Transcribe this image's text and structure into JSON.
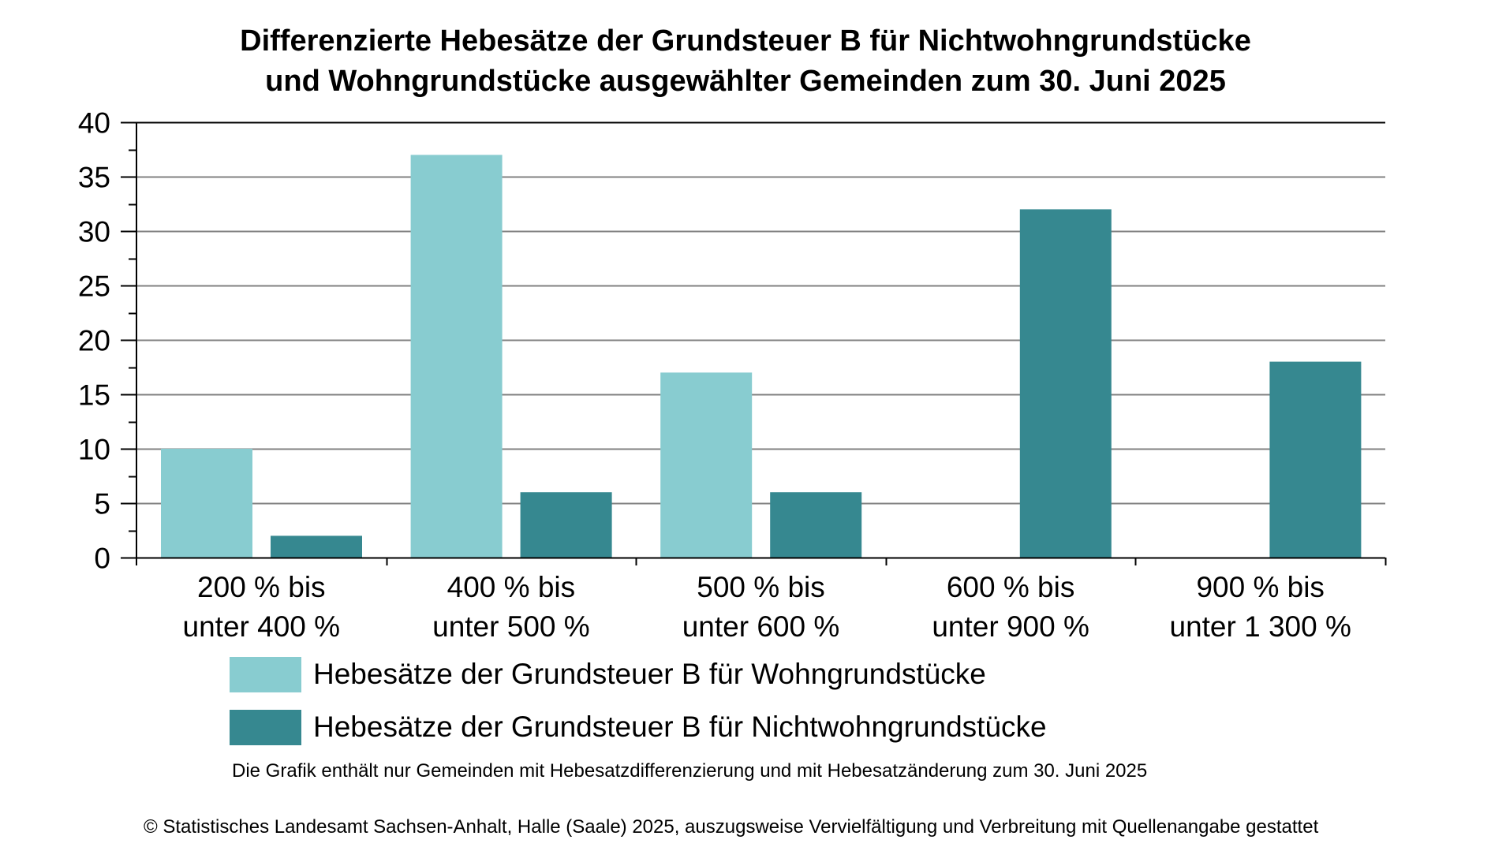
{
  "title_lines": [
    "Differenzierte Hebesätze der Grundsteuer B für Nichtwohngrundstücke",
    "und Wohngrundstücke ausgewählter Gemeinden zum 30. Juni 2025"
  ],
  "colors": {
    "wohn": "#88CCD0",
    "nichtwohn": "#368890",
    "grid": "#808080",
    "axis": "#000000"
  },
  "footnote": "Die Grafik enthält nur Gemeinden mit Hebesatzdifferenzierung und mit Hebesatzänderung zum 30. Juni 2025",
  "copyright": "© Statistisches Landesamt Sachsen-Anhalt, Halle (Saale) 2025, auszugsweise Vervielfältigung und Verbreitung mit Quellenangabe gestattet",
  "chart_data": {
    "type": "bar",
    "title": "Differenzierte Hebesätze der Grundsteuer B für Nichtwohngrundstücke und Wohngrundstücke ausgewählter Gemeinden zum 30. Juni 2025",
    "xlabel": "",
    "ylabel": "",
    "categories": [
      [
        "200 % bis",
        "unter 400 %"
      ],
      [
        "400 % bis",
        "unter 500 %"
      ],
      [
        "500 % bis",
        "unter 600 %"
      ],
      [
        "600 % bis",
        "unter 900 %"
      ],
      [
        "900 % bis",
        "unter 1 300 %"
      ]
    ],
    "series": [
      {
        "name": "Hebesätze der Grundsteuer B für Wohngrundstücke",
        "color": "#88CCD0",
        "values": [
          10,
          37,
          17,
          0,
          0
        ]
      },
      {
        "name": "Hebesätze der Grundsteuer B für Nichtwohngrundstücke",
        "color": "#368890",
        "values": [
          2,
          6,
          6,
          32,
          18
        ]
      }
    ],
    "ylim": [
      0,
      40
    ],
    "yticks": [
      0,
      5,
      10,
      15,
      20,
      25,
      30,
      35,
      40
    ],
    "yminor_step": 2.5,
    "grid": true,
    "legend_position": "bottom"
  }
}
